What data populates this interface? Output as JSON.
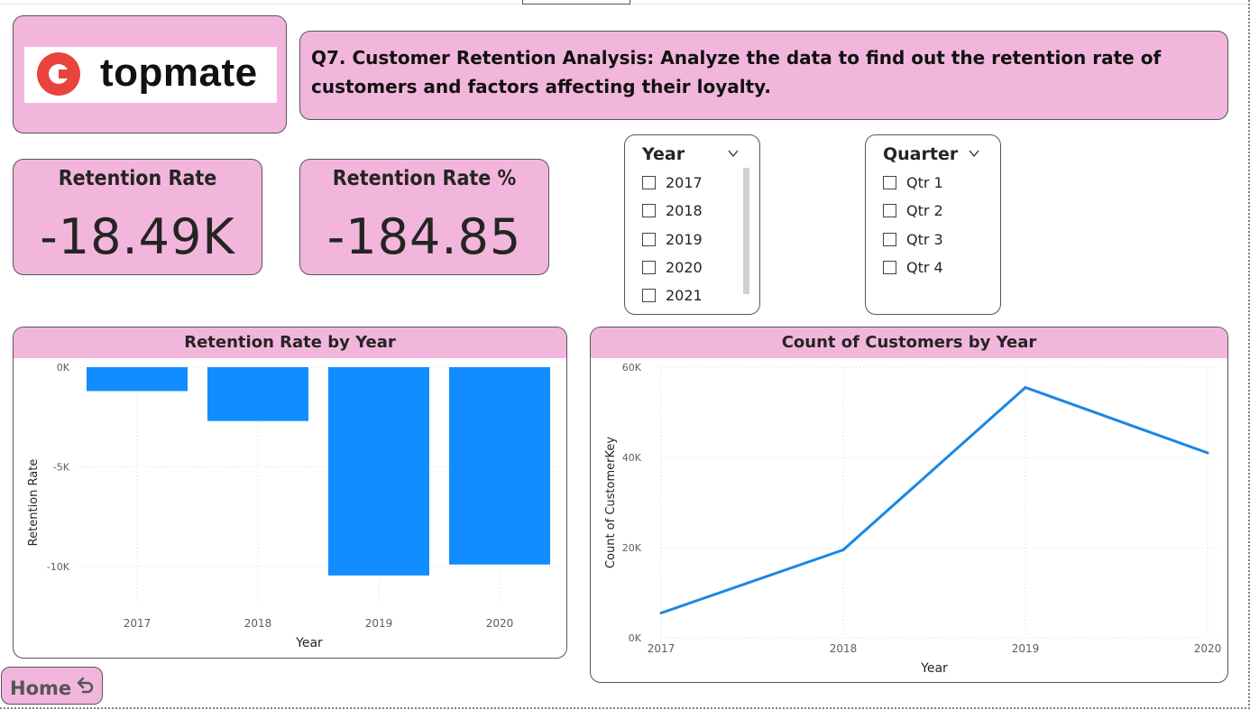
{
  "brand": {
    "logo_text": "topmate",
    "logo_color": "#e8433c"
  },
  "question": {
    "text": "Q7. Customer Retention Analysis: Analyze the data to find out the retention rate of customers and factors affecting their loyalty."
  },
  "kpis": [
    {
      "label": "Retention Rate",
      "value": "-18.49K"
    },
    {
      "label": "Retention Rate %",
      "value": "-184.85"
    }
  ],
  "slicers": {
    "year": {
      "title": "Year",
      "items": [
        "2017",
        "2018",
        "2019",
        "2020",
        "2021"
      ]
    },
    "quarter": {
      "title": "Quarter",
      "items": [
        "Qtr 1",
        "Qtr 2",
        "Qtr 3",
        "Qtr 4"
      ]
    }
  },
  "home_button": {
    "label": "Home"
  },
  "colors": {
    "card_pink": "#f2b6dd",
    "bar_blue": "#118dff",
    "line_blue": "#1a87e6"
  },
  "chart_data": [
    {
      "type": "bar",
      "title": "Retention Rate by Year",
      "categories": [
        "2017",
        "2018",
        "2019",
        "2020"
      ],
      "values": [
        -1200,
        -2700,
        -10450,
        -9900
      ],
      "xlabel": "Year",
      "ylabel": "Retention Rate",
      "yticks": [
        "0K",
        "-5K",
        "-10K"
      ],
      "ylim": [
        -10500,
        0
      ],
      "grid": true
    },
    {
      "type": "line",
      "title": "Count of Customers by Year",
      "x": [
        "2017",
        "2018",
        "2019",
        "2020"
      ],
      "values": [
        5500,
        19500,
        55500,
        41000
      ],
      "xlabel": "Year",
      "ylabel": "Count of CustomerKey",
      "yticks": [
        "60K",
        "40K",
        "20K",
        "0K"
      ],
      "ylim": [
        0,
        60000
      ],
      "grid": true
    }
  ]
}
